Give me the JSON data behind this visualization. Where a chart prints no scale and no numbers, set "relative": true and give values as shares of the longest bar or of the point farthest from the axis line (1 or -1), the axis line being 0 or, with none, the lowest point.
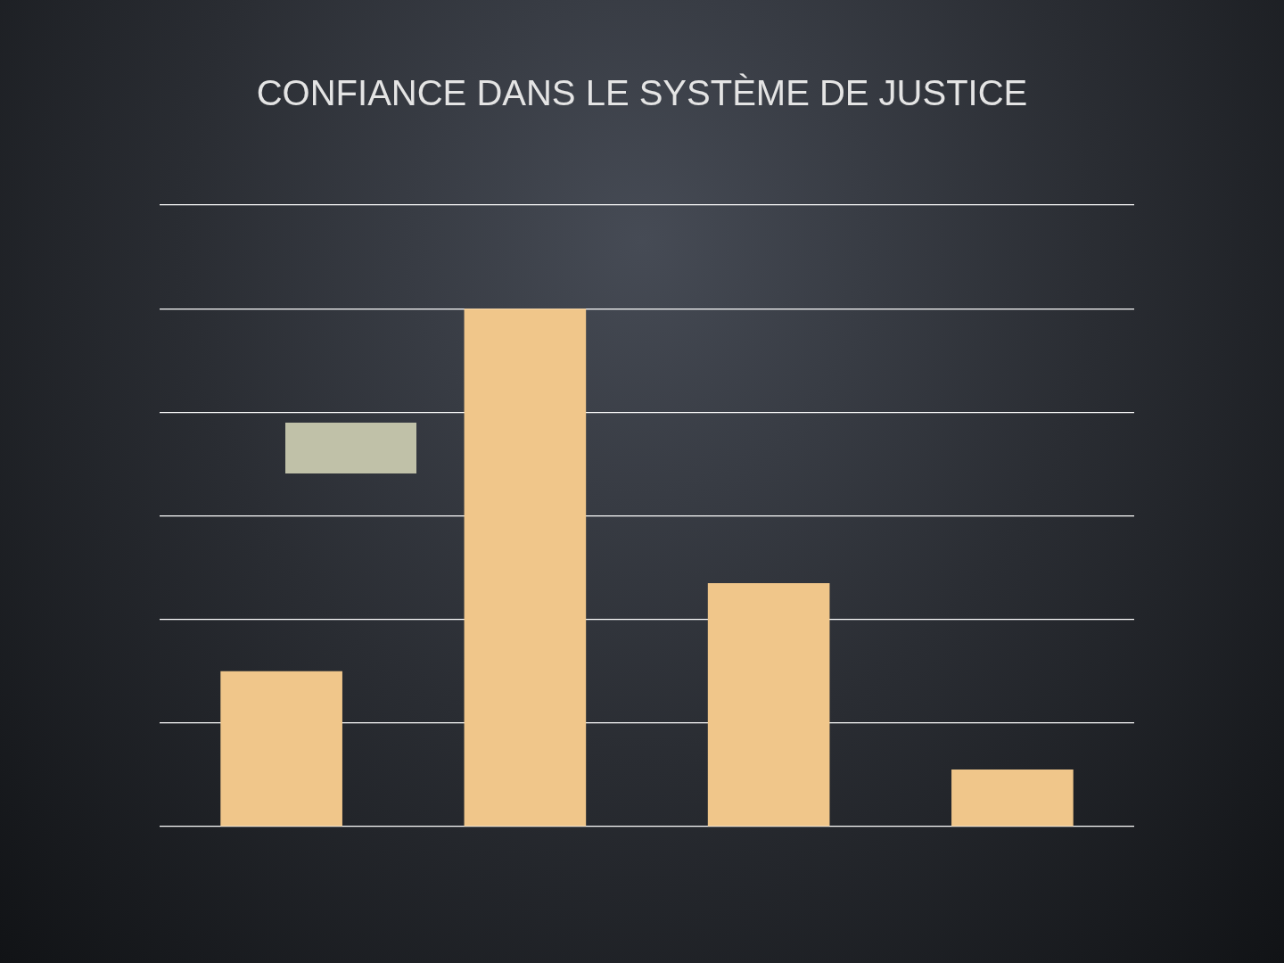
{
  "chart_data": {
    "type": "bar",
    "title": "CONFIANCE DANS LE SYSTÈME DE JUSTICE",
    "relative": true,
    "grid": true,
    "categories": [
      null,
      null,
      null,
      null
    ],
    "values": [
      0.3,
      1,
      0.47,
      0.11
    ],
    "color": "#f0c68a"
  }
}
